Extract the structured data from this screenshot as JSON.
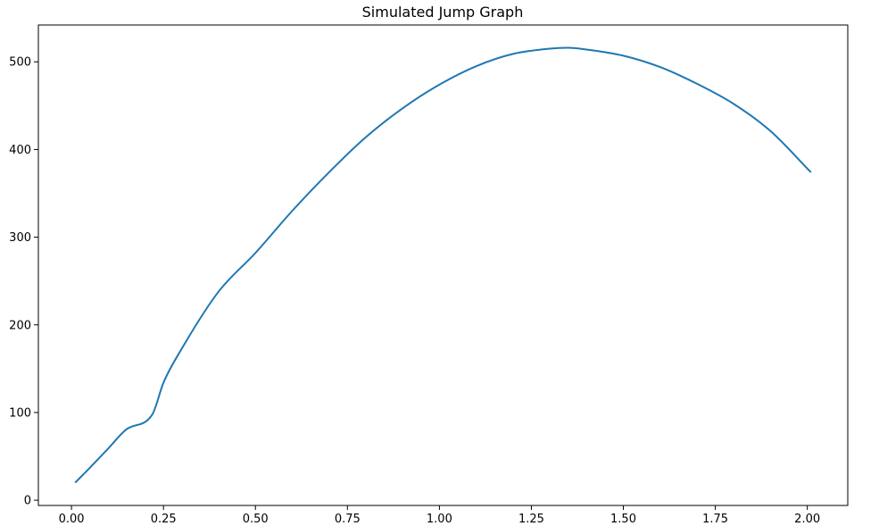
{
  "chart_data": {
    "type": "line",
    "title": "Simulated Jump Graph",
    "xlabel": "",
    "ylabel": "",
    "xlim": [
      -0.09,
      2.11
    ],
    "ylim": [
      -6,
      542
    ],
    "x_ticks": [
      0.0,
      0.25,
      0.5,
      0.75,
      1.0,
      1.25,
      1.5,
      1.75,
      2.0
    ],
    "x_tick_labels": [
      "0.00",
      "0.25",
      "0.50",
      "0.75",
      "1.00",
      "1.25",
      "1.50",
      "1.75",
      "2.00"
    ],
    "y_ticks": [
      0,
      100,
      200,
      300,
      400,
      500
    ],
    "y_tick_labels": [
      "0",
      "100",
      "200",
      "300",
      "400",
      "500"
    ],
    "grid": false,
    "series": [
      {
        "color": "#1f77b4",
        "x": [
          0.01,
          0.05,
          0.1,
          0.15,
          0.22,
          0.25,
          0.3,
          0.4,
          0.5,
          0.6,
          0.7,
          0.8,
          0.9,
          1.0,
          1.1,
          1.2,
          1.3,
          1.35,
          1.4,
          1.5,
          1.6,
          1.7,
          1.8,
          1.9,
          2.01
        ],
        "y": [
          20,
          37,
          59,
          81,
          98,
          134,
          173,
          238,
          282,
          330,
          374,
          414,
          447,
          474,
          495,
          509,
          515,
          516,
          514,
          507,
          494,
          475,
          452,
          421,
          374
        ]
      }
    ]
  }
}
